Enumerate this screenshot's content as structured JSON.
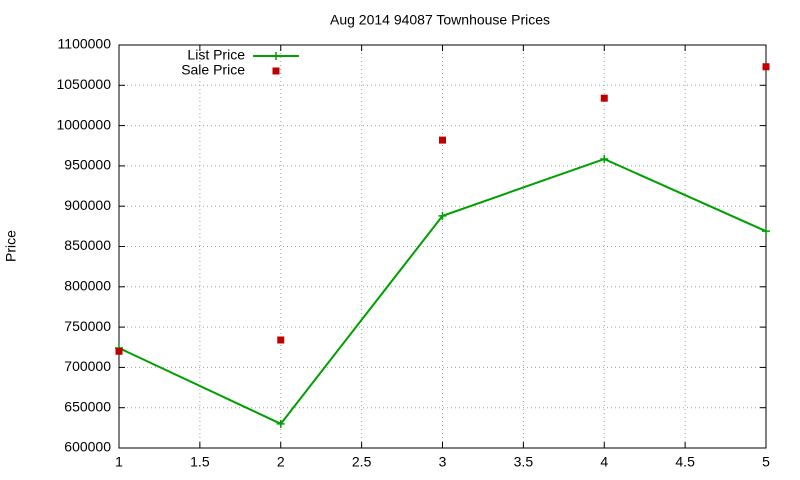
{
  "chart_data": {
    "type": "line",
    "title": "Aug 2014 94087 Townhouse Prices",
    "y_label": "Price",
    "x": [
      1,
      2,
      3,
      4,
      5
    ],
    "series": [
      {
        "name": "List Price",
        "color": "#00a000",
        "mode": "lines+points",
        "values": [
          724000,
          630000,
          888000,
          958500,
          869000
        ]
      },
      {
        "name": "Sale Price",
        "color": "#c00000",
        "mode": "points",
        "values": [
          720000,
          734000,
          982000,
          1034000,
          1073000
        ]
      }
    ],
    "xlim": [
      1,
      5
    ],
    "xticks": [
      1,
      1.5,
      2,
      2.5,
      3,
      3.5,
      4,
      4.5,
      5
    ],
    "ylim": [
      600000,
      1100000
    ],
    "yticks": [
      600000,
      650000,
      700000,
      750000,
      800000,
      850000,
      900000,
      950000,
      1000000,
      1050000,
      1100000
    ],
    "grid": true,
    "legend": "top-left"
  }
}
